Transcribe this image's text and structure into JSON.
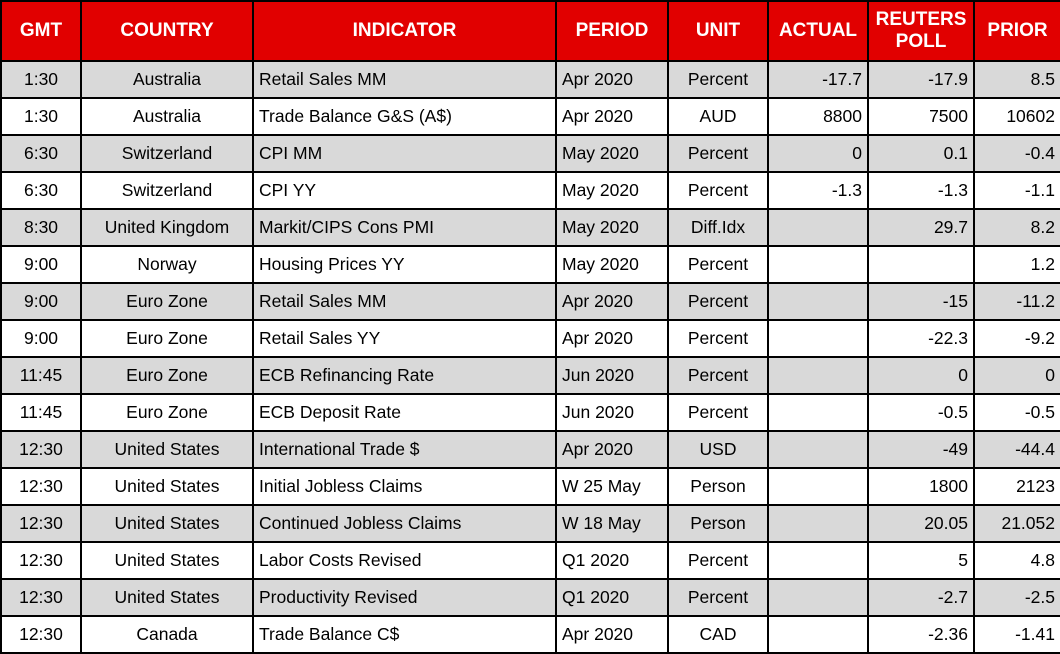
{
  "colors": {
    "header_bg": "#e10000",
    "header_text": "#ffffff",
    "row_bg": "#ffffff",
    "row_alt_bg": "#d9d9d9",
    "border": "#000000",
    "text": "#000000"
  },
  "chart_data": {
    "type": "table",
    "columns": [
      "GMT",
      "COUNTRY",
      "INDICATOR",
      "PERIOD",
      "UNIT",
      "ACTUAL",
      "REUTERS POLL",
      "PRIOR"
    ],
    "rows": [
      [
        "1:30",
        "Australia",
        "Retail Sales MM",
        "Apr 2020",
        "Percent",
        "-17.7",
        "-17.9",
        "8.5"
      ],
      [
        "1:30",
        "Australia",
        "Trade Balance G&S (A$)",
        "Apr 2020",
        "AUD",
        "8800",
        "7500",
        "10602"
      ],
      [
        "6:30",
        "Switzerland",
        "CPI MM",
        "May 2020",
        "Percent",
        "0",
        "0.1",
        "-0.4"
      ],
      [
        "6:30",
        "Switzerland",
        "CPI YY",
        "May 2020",
        "Percent",
        "-1.3",
        "-1.3",
        "-1.1"
      ],
      [
        "8:30",
        "United Kingdom",
        "Markit/CIPS Cons PMI",
        "May 2020",
        "Diff.Idx",
        "",
        "29.7",
        "8.2"
      ],
      [
        "9:00",
        "Norway",
        "Housing Prices YY",
        "May 2020",
        "Percent",
        "",
        "",
        "1.2"
      ],
      [
        "9:00",
        "Euro Zone",
        "Retail Sales MM",
        "Apr 2020",
        "Percent",
        "",
        "-15",
        "-11.2"
      ],
      [
        "9:00",
        "Euro Zone",
        "Retail Sales YY",
        "Apr 2020",
        "Percent",
        "",
        "-22.3",
        "-9.2"
      ],
      [
        "11:45",
        "Euro Zone",
        "ECB Refinancing Rate",
        "Jun 2020",
        "Percent",
        "",
        "0",
        "0"
      ],
      [
        "11:45",
        "Euro Zone",
        "ECB Deposit Rate",
        "Jun 2020",
        "Percent",
        "",
        "-0.5",
        "-0.5"
      ],
      [
        "12:30",
        "United States",
        "International Trade $",
        "Apr 2020",
        "USD",
        "",
        "-49",
        "-44.4"
      ],
      [
        "12:30",
        "United States",
        "Initial Jobless Claims",
        "W 25 May",
        "Person",
        "",
        "1800",
        "2123"
      ],
      [
        "12:30",
        "United States",
        "Continued Jobless Claims",
        "W 18 May",
        "Person",
        "",
        "20.05",
        "21.052"
      ],
      [
        "12:30",
        "United States",
        "Labor Costs Revised",
        "Q1 2020",
        "Percent",
        "",
        "5",
        "4.8"
      ],
      [
        "12:30",
        "United States",
        "Productivity Revised",
        "Q1 2020",
        "Percent",
        "",
        "-2.7",
        "-2.5"
      ],
      [
        "12:30",
        "Canada",
        "Trade Balance C$",
        "Apr 2020",
        "CAD",
        "",
        "-2.36",
        "-1.41"
      ]
    ]
  }
}
